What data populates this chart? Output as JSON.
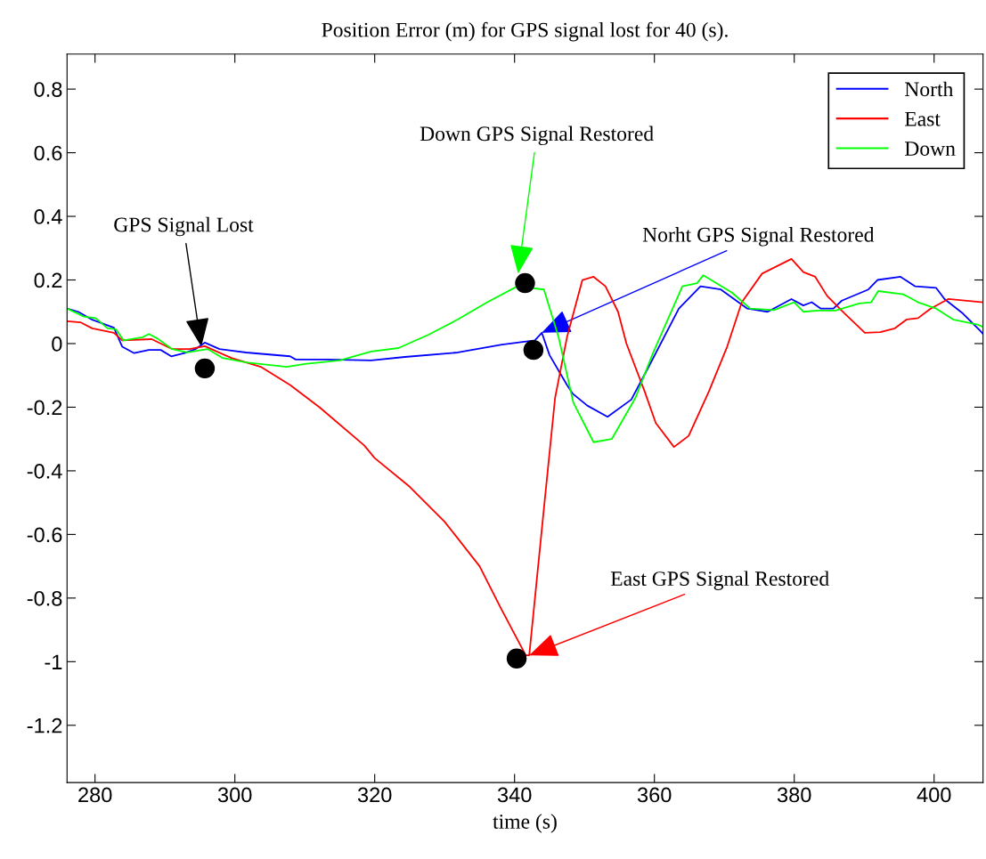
{
  "chart_data": {
    "type": "line",
    "title": "Position Error (m) for GPS signal lost for 40 (s).",
    "xlabel": "time (s)",
    "xlim": [
      276,
      407
    ],
    "ylim": [
      -1.38,
      0.91
    ],
    "xticks": [
      280,
      300,
      320,
      340,
      360,
      380,
      400
    ],
    "yticks": [
      0.8,
      0.6,
      0.4,
      0.2,
      0,
      -0.2,
      -0.4,
      -0.6,
      -0.8,
      -1,
      -1.2
    ],
    "grid": false,
    "legend": "top right",
    "marker": "none",
    "line_style": "solid",
    "series": [
      {
        "name": "North",
        "color": "#0000ff",
        "x": [
          276,
          277.6,
          279.6,
          282.7,
          283.9,
          285.6,
          287.7,
          289.4,
          290.9,
          292.8,
          294.4,
          295.7,
          297.8,
          301.6,
          307.9,
          308.7,
          313.4,
          319.5,
          324.3,
          331.9,
          338.2,
          342.9,
          343.9,
          345.0,
          347.5,
          348.3,
          350.4,
          353.3,
          356.7,
          359.3,
          363.5,
          366.6,
          369.5,
          373.3,
          376.2,
          379.6,
          381.3,
          382.5,
          383.8,
          385.6,
          386.8,
          390.6,
          391.9,
          395.2,
          397.3,
          400.3,
          401.5,
          404.1,
          406.6,
          407
        ],
        "values": [
          0.11,
          0.1,
          0.075,
          0.05,
          -0.01,
          -0.03,
          -0.02,
          -0.02,
          -0.04,
          -0.03,
          -0.017,
          0.003,
          -0.017,
          -0.028,
          -0.04,
          -0.05,
          -0.05,
          -0.053,
          -0.042,
          -0.028,
          -0.003,
          0.01,
          0.034,
          -0.036,
          -0.13,
          -0.157,
          -0.195,
          -0.23,
          -0.176,
          -0.068,
          0.11,
          0.18,
          0.17,
          0.11,
          0.1,
          0.14,
          0.12,
          0.13,
          0.11,
          0.11,
          0.135,
          0.17,
          0.2,
          0.21,
          0.18,
          0.175,
          0.14,
          0.095,
          0.04,
          0.03
        ]
      },
      {
        "name": "East",
        "color": "#ff0000",
        "x": [
          276,
          277.9,
          279.6,
          282.7,
          283.9,
          288.1,
          291,
          293.5,
          295.7,
          299.5,
          303.7,
          307.9,
          312.1,
          318.5,
          320,
          325,
          330,
          335,
          338,
          341.6,
          342.1,
          344.1,
          345.8,
          347.5,
          349.7,
          351.3,
          353,
          354.8,
          356,
          358.6,
          360.2,
          362.8,
          364.9,
          367.8,
          370.4,
          372.5,
          375.4,
          379.6,
          381.3,
          383,
          384.7,
          387.2,
          390.1,
          392.3,
          394.4,
          396.1,
          397.7,
          399.5,
          402,
          407
        ],
        "values": [
          0.07,
          0.067,
          0.048,
          0.034,
          0.01,
          0.014,
          -0.017,
          -0.017,
          -0.008,
          -0.045,
          -0.073,
          -0.13,
          -0.2,
          -0.32,
          -0.36,
          -0.45,
          -0.56,
          -0.7,
          -0.83,
          -0.98,
          -0.98,
          -0.54,
          -0.17,
          0.02,
          0.2,
          0.21,
          0.18,
          0.1,
          0.0,
          -0.15,
          -0.25,
          -0.325,
          -0.29,
          -0.15,
          -0.01,
          0.13,
          0.22,
          0.266,
          0.225,
          0.21,
          0.15,
          0.095,
          0.034,
          0.036,
          0.048,
          0.076,
          0.08,
          0.11,
          0.14,
          0.13
        ]
      },
      {
        "name": "Down",
        "color": "#00ff00",
        "x": [
          276,
          278.4,
          280.1,
          281.8,
          283,
          284.1,
          286.8,
          287.7,
          289,
          291,
          293.2,
          296.1,
          298.2,
          301.6,
          307.4,
          310,
          315,
          319.5,
          323.4,
          327.7,
          331.9,
          336.1,
          340.4,
          344.2,
          346.3,
          348.4,
          351.3,
          353.9,
          357.3,
          359.8,
          364,
          366.1,
          367,
          371.1,
          373.7,
          377.1,
          380,
          381.3,
          383.4,
          385.9,
          389.3,
          391,
          392,
          395.6,
          397.7,
          400.3,
          402.8,
          406.2,
          407
        ],
        "values": [
          0.11,
          0.085,
          0.08,
          0.048,
          0.045,
          0.01,
          0.02,
          0.03,
          0.015,
          -0.017,
          -0.028,
          -0.017,
          -0.045,
          -0.059,
          -0.073,
          -0.064,
          -0.053,
          -0.025,
          -0.014,
          0.028,
          0.076,
          0.13,
          0.18,
          0.17,
          0.02,
          -0.185,
          -0.31,
          -0.3,
          -0.17,
          -0.03,
          0.18,
          0.19,
          0.215,
          0.16,
          0.11,
          0.105,
          0.13,
          0.1,
          0.104,
          0.104,
          0.126,
          0.13,
          0.165,
          0.155,
          0.13,
          0.11,
          0.075,
          0.06,
          0.052
        ]
      },
      {
        "type": "scatter",
        "marker": "circle",
        "color": "#000000",
        "x": [
          295.7,
          341.5,
          342.7,
          340.3
        ],
        "values": [
          -0.078,
          0.19,
          -0.02,
          -0.99
        ]
      }
    ],
    "annotations": [
      {
        "text": "GPS Signal Lost",
        "x": 295.2,
        "y": -0.01
      },
      {
        "text": "Down GPS Signal Restored",
        "x": 340.5,
        "y": 0.22
      },
      {
        "text": "Norht GPS Signal Restored",
        "x": 343.9,
        "y": 0.034
      },
      {
        "text": "East GPS Signal Restored",
        "x": 342.1,
        "y": -0.98
      }
    ]
  }
}
